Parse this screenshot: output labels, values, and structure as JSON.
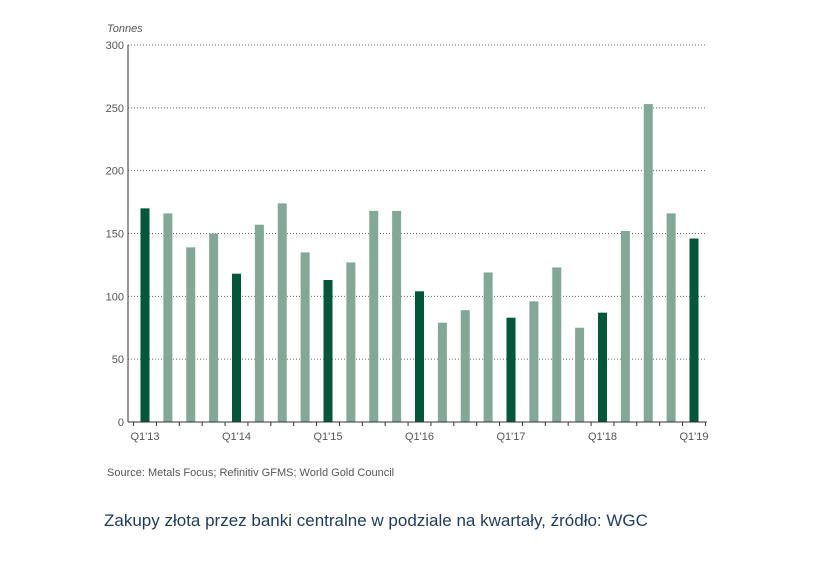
{
  "chart_data": {
    "type": "bar",
    "ylabel": "Tonnes",
    "ylim": [
      0,
      300
    ],
    "yticks": [
      "0",
      "50",
      "100",
      "150",
      "200",
      "250",
      "300"
    ],
    "xtick_labels": [
      "Q1'13",
      "Q1'14",
      "Q1'15",
      "Q1'16",
      "Q1'17",
      "Q1'18",
      "Q1'19"
    ],
    "categories": [
      "Q1'13",
      "Q2'13",
      "Q3'13",
      "Q4'13",
      "Q1'14",
      "Q2'14",
      "Q3'14",
      "Q4'14",
      "Q1'15",
      "Q2'15",
      "Q3'15",
      "Q4'15",
      "Q1'16",
      "Q2'16",
      "Q3'16",
      "Q4'16",
      "Q1'17",
      "Q2'17",
      "Q3'17",
      "Q4'17",
      "Q1'18",
      "Q2'18",
      "Q3'18",
      "Q4'18",
      "Q1'19"
    ],
    "values": [
      170,
      166,
      139,
      150,
      118,
      157,
      174,
      135,
      113,
      127,
      168,
      168,
      104,
      79,
      89,
      119,
      83,
      96,
      123,
      75,
      87,
      152,
      253,
      166,
      146
    ],
    "grid": "horizontal dotted",
    "colors": {
      "q1": "#00573a",
      "other": "#84a898"
    },
    "source": "Source: Metals Focus; Refinitiv GFMS; World Gold Council"
  },
  "caption": "Zakupy złota przez banki centralne w podziale na kwartały, źródło: WGC"
}
